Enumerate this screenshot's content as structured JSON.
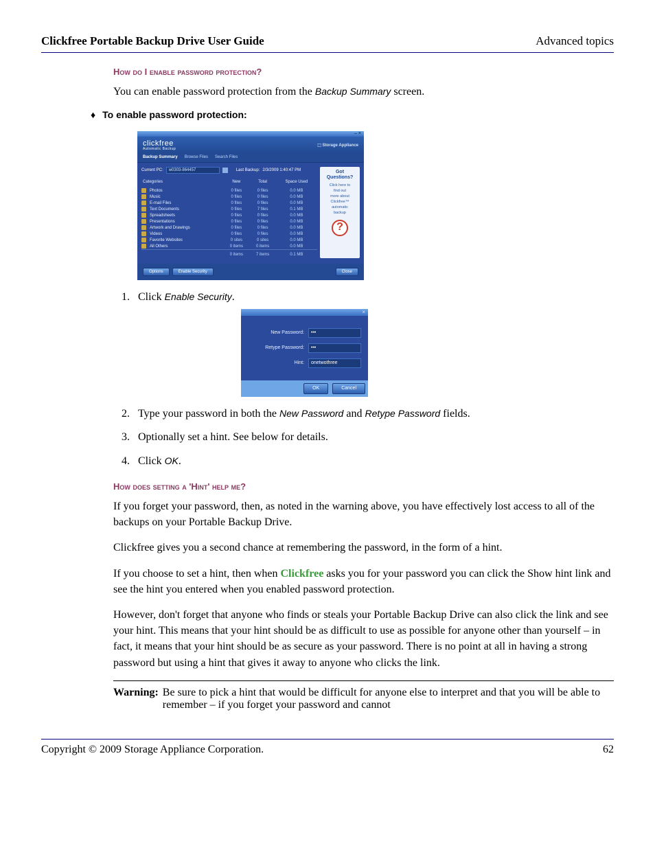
{
  "header": {
    "title": "Clickfree Portable Backup Drive User Guide",
    "section": "Advanced topics"
  },
  "questions": {
    "q1": "How do I enable password protection?",
    "q2": "How does setting a 'Hint' help me?"
  },
  "intro": {
    "pre": "You can enable password protection from the ",
    "term": "Backup Summary",
    "post": " screen."
  },
  "bullet": "To enable password protection:",
  "screenshot1": {
    "window_controls": "– ×",
    "logo": "clickfree",
    "logo_sub": "Automatic Backup",
    "appliance_icon": "⬚",
    "appliance": "Storage\nAppliance",
    "tabs": [
      "Backup Summary",
      "Browse Files",
      "Search Files"
    ],
    "pc_label": "Current PC:",
    "pc_name": "w0303-864457",
    "last_backup_label": "Last Backup:",
    "last_backup": "2/3/2009 1:40:47 PM",
    "columns": [
      "Categories",
      "New",
      "Total",
      "Space Used"
    ],
    "rows": [
      {
        "cat": "Photos",
        "new": "0 files",
        "total": "0 files",
        "space": "0.0 MB"
      },
      {
        "cat": "Music",
        "new": "0 files",
        "total": "0 files",
        "space": "0.0 MB"
      },
      {
        "cat": "E-mail Files",
        "new": "0 files",
        "total": "0 files",
        "space": "0.0 MB"
      },
      {
        "cat": "Text Documents",
        "new": "0 files",
        "total": "7 files",
        "space": "0.1 MB"
      },
      {
        "cat": "Spreadsheets",
        "new": "0 files",
        "total": "0 files",
        "space": "0.0 MB"
      },
      {
        "cat": "Presentations",
        "new": "0 files",
        "total": "0 files",
        "space": "0.0 MB"
      },
      {
        "cat": "Artwork and Drawings",
        "new": "0 files",
        "total": "0 files",
        "space": "0.0 MB"
      },
      {
        "cat": "Videos",
        "new": "0 files",
        "total": "0 files",
        "space": "0.0 MB"
      },
      {
        "cat": "Favorite Websites",
        "new": "0 sites",
        "total": "0 sites",
        "space": "0.0 MB"
      },
      {
        "cat": "All Others",
        "new": "0 items",
        "total": "0 items",
        "space": "0.0 MB"
      }
    ],
    "totals": {
      "new": "0 items",
      "total": "7 items",
      "space": "0.1 MB"
    },
    "sidebar": {
      "got": "Got Questions?",
      "links": [
        "Click here to",
        "find out",
        "more about",
        "Clickfree™",
        "automatic",
        "backup"
      ],
      "qmark": "?"
    },
    "buttons": {
      "options": "Options",
      "enable": "Enable Security",
      "close": "Close"
    }
  },
  "steps": {
    "s1_pre": "Click ",
    "s1_term": "Enable Security",
    "s1_post": ".",
    "s2_pre": "Type your password in both the ",
    "s2_t1": "New Password",
    "s2_mid": " and ",
    "s2_t2": "Retype Password",
    "s2_post": " fields.",
    "s3": "Optionally set a hint. See below for details.",
    "s4_pre": "Click ",
    "s4_term": "OK",
    "s4_post": "."
  },
  "screenshot2": {
    "close": "×",
    "labels": {
      "newp": "New Password:",
      "retp": "Retype Password:",
      "hint": "Hint:"
    },
    "values": {
      "newp": "•••",
      "retp": "•••",
      "hint": "onetwothree"
    },
    "buttons": {
      "ok": "OK",
      "cancel": "Cancel"
    }
  },
  "hint_section": {
    "p1": "If you forget your password, then, as noted in the warning above, you have effectively lost access to all of the backups on your Portable Backup Drive.",
    "p2": "Clickfree gives you a second chance at remembering the password, in the form of a hint.",
    "p3_pre": "If you choose to set a hint, then when ",
    "p3_brand": "Clickfree",
    "p3_post": " asks you for your password you can click the Show hint link and see the hint you entered when you enabled password protection.",
    "p4": "However, don't forget that anyone who finds or steals your Portable Backup Drive can also click the link and see your hint. This means that your hint should be as difficult to use as possible for anyone other than yourself – in fact, it means that your hint should be as secure as your password. There is no point at all in having a strong password but using a hint that gives it away to anyone who clicks the link."
  },
  "warning": {
    "label": "Warning:",
    "text": "Be sure to pick a hint that would be difficult for anyone else to interpret and that you will be able to remember – if you forget your password and cannot"
  },
  "footer": {
    "copyright": "Copyright © 2009  Storage Appliance Corporation.",
    "page": "62"
  }
}
